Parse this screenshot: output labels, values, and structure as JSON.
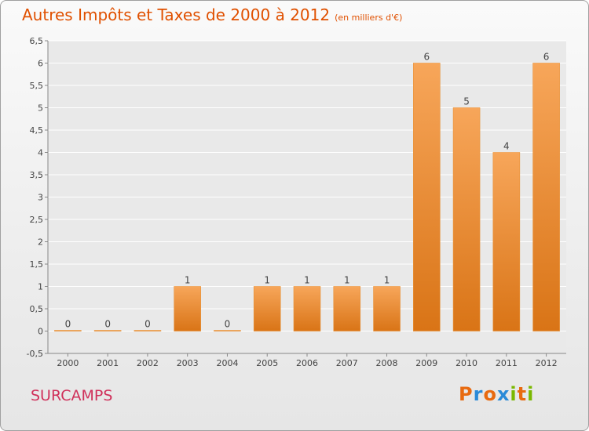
{
  "header": {
    "title": "Autres Impôts et Taxes de 2000 à 2012",
    "unit": "(en milliers d'€)"
  },
  "commune": "SURCAMPS",
  "brand": {
    "text": "Proxiti",
    "colors": [
      "#e86a10",
      "#2a8ad8",
      "#e86a10",
      "#2a8ad8",
      "#7ab800",
      "#e86a10",
      "#7ab800"
    ]
  },
  "colors": {
    "bar_top": "#f7a65a",
    "bar_bottom": "#d97416",
    "title": "#e05000",
    "commune": "#d0305a"
  },
  "chart_data": {
    "type": "bar",
    "title": "Autres Impôts et Taxes de 2000 à 2012",
    "unit": "(en milliers d'€)",
    "categories": [
      "2000",
      "2001",
      "2002",
      "2003",
      "2004",
      "2005",
      "2006",
      "2007",
      "2008",
      "2009",
      "2010",
      "2011",
      "2012"
    ],
    "values": [
      0,
      0,
      0,
      1,
      0,
      1,
      1,
      1,
      1,
      6,
      5,
      4,
      6
    ],
    "ylim": [
      -0.5,
      6.5
    ],
    "yticks": [
      "-0,5",
      "0",
      "0,5",
      "1",
      "1,5",
      "2",
      "2,5",
      "3",
      "3,5",
      "4",
      "4,5",
      "5",
      "5,5",
      "6",
      "6,5"
    ],
    "grid": true
  }
}
